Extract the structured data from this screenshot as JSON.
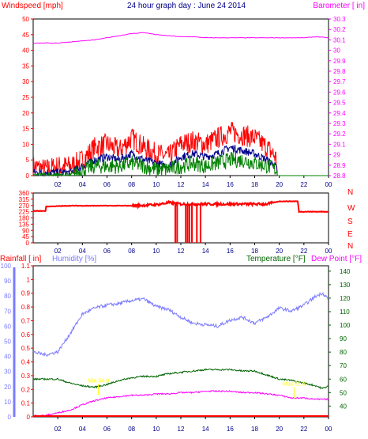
{
  "header": {
    "left_title": "Windspeed [mph]",
    "center_title": "24 hour graph day : June 24 2014",
    "right_title": "Barometer [ in]"
  },
  "colors": {
    "background": "#ffffff",
    "plot_bg": "#ffffff",
    "wind_gust": "#ff0000",
    "wind_avg": "#00008b",
    "wind_speed": "#008000",
    "barometer": "#ff00ff",
    "direction": "#ff0000",
    "humidity": "#7b7bff",
    "temperature": "#006400",
    "dewpoint": "#ff00ff",
    "rain": "#ff0000",
    "time_labels": "#00008b",
    "annotation": "#ffff00"
  },
  "chart_data": [
    {
      "id": "wind",
      "type": "line",
      "xlabel": "",
      "x_ticks": [
        "02",
        "04",
        "06",
        "08",
        "10",
        "12",
        "14",
        "16",
        "18",
        "20",
        "22",
        "00"
      ],
      "left_axis": {
        "label": "Windspeed [mph]",
        "min": 0,
        "max": 50,
        "ticks": [
          0,
          5,
          10,
          15,
          20,
          25,
          30,
          35,
          40,
          45,
          50
        ]
      },
      "right_axis": {
        "label": "Barometer [ in]",
        "min": 28.8,
        "max": 30.3,
        "ticks": [
          28.8,
          28.9,
          29.0,
          29.1,
          29.2,
          29.3,
          29.4,
          29.5,
          29.6,
          29.7,
          29.8,
          29.9,
          30.0,
          30.1,
          30.2,
          30.3
        ],
        "tick_labels": [
          "28.8",
          "28.9",
          "29",
          "29.1",
          "29.2",
          "29.3",
          "29.4",
          "29.5",
          "29.6",
          "29.7",
          "29.8",
          "29.9",
          "30",
          "30.1",
          "30.2",
          "30.3"
        ]
      },
      "hours": [
        0,
        1,
        2,
        3,
        4,
        5,
        6,
        7,
        8,
        9,
        10,
        11,
        12,
        13,
        14,
        15,
        16,
        17,
        18,
        19,
        19.7,
        20,
        21,
        22,
        23,
        24
      ],
      "series": [
        {
          "values_gust": [
            3,
            2,
            3,
            3,
            5,
            9,
            10,
            8,
            12,
            9,
            7,
            6,
            10,
            11,
            10,
            12,
            14,
            13,
            12,
            9,
            6,
            0,
            0,
            0,
            0,
            0
          ]
        },
        {
          "values_avg": [
            1,
            1,
            1,
            1,
            3,
            5,
            6,
            5,
            7,
            5,
            4,
            3,
            6,
            7,
            6,
            7,
            9,
            8,
            7,
            5,
            3,
            0,
            0,
            0,
            0,
            0
          ]
        },
        {
          "values_speed": [
            0,
            0,
            0,
            0,
            2,
            3,
            3,
            3,
            4,
            3,
            2,
            2,
            3,
            4,
            3,
            4,
            5,
            5,
            4,
            3,
            2,
            0,
            0,
            0,
            0,
            0
          ]
        },
        {
          "values_baro": [
            30.07,
            30.07,
            30.07,
            30.08,
            30.09,
            30.1,
            30.12,
            30.14,
            30.16,
            30.17,
            30.15,
            30.14,
            30.13,
            30.13,
            30.12,
            30.12,
            30.12,
            30.12,
            30.12,
            30.12,
            30.12,
            30.12,
            30.12,
            30.12,
            30.13,
            30.12
          ]
        }
      ]
    },
    {
      "id": "direction",
      "type": "line",
      "xlabel": "",
      "x_ticks": [
        "02",
        "04",
        "06",
        "08",
        "10",
        "12",
        "14",
        "16",
        "18",
        "20",
        "22",
        "00"
      ],
      "left_axis": {
        "min": 0,
        "max": 360,
        "ticks": [
          0,
          45,
          90,
          135,
          180,
          225,
          270,
          315,
          360
        ]
      },
      "right_axis": {
        "labels": [
          "N",
          "W",
          "S",
          "E",
          "N"
        ]
      },
      "points": [
        [
          0,
          230
        ],
        [
          1,
          230
        ],
        [
          1.05,
          262
        ],
        [
          3,
          268
        ],
        [
          8,
          268
        ],
        [
          10,
          275
        ],
        [
          11,
          290
        ],
        [
          12,
          280
        ],
        [
          19,
          280
        ],
        [
          20,
          300
        ],
        [
          21.5,
          300
        ],
        [
          21.6,
          225
        ],
        [
          24,
          225
        ]
      ],
      "drops": [
        [
          11.55,
          0
        ],
        [
          11.7,
          0
        ],
        [
          12.4,
          0
        ],
        [
          12.55,
          0
        ],
        [
          12.7,
          0
        ],
        [
          12.9,
          0
        ],
        [
          13.3,
          0
        ],
        [
          13.6,
          0
        ]
      ]
    },
    {
      "id": "climate",
      "type": "line",
      "x_ticks": [
        "02",
        "04",
        "06",
        "08",
        "10",
        "12",
        "14",
        "16",
        "18",
        "20",
        "22",
        "00"
      ],
      "legend": [
        "Rainfall [ in]",
        "Humidity [%]",
        "Temperature [°F]",
        "Dew Point [°F]"
      ],
      "humidity_axis": {
        "min": 0,
        "max": 100,
        "ticks": [
          0,
          10,
          20,
          30,
          40,
          50,
          60,
          70,
          80,
          90,
          100
        ]
      },
      "rain_axis": {
        "min": 0,
        "max": 1.1,
        "ticks": [
          0,
          0.1,
          0.2,
          0.3,
          0.4,
          0.5,
          0.6,
          0.7,
          0.8,
          0.9,
          1.0,
          1.1
        ],
        "tick_labels": [
          "0",
          "0.1",
          "0.2",
          "0.3",
          "0.4",
          "0.5",
          "0.6",
          "0.7",
          "0.8",
          "0.9",
          "1",
          "1.1"
        ]
      },
      "temp_axis": {
        "min": 32,
        "max": 144,
        "ticks": [
          40,
          50,
          60,
          70,
          80,
          90,
          100,
          110,
          120,
          130,
          140
        ]
      },
      "hours": [
        0,
        1,
        2,
        3,
        4,
        5,
        6,
        7,
        8,
        9,
        10,
        11,
        12,
        13,
        14,
        15,
        16,
        17,
        18,
        19,
        20,
        21,
        22,
        23,
        23.5,
        24
      ],
      "humidity": [
        43,
        41,
        43,
        55,
        68,
        72,
        74,
        75,
        77,
        78,
        73,
        71,
        66,
        62,
        61,
        60,
        64,
        66,
        62,
        66,
        72,
        70,
        74,
        80,
        82,
        78
      ],
      "temperature": [
        60,
        60,
        60,
        57,
        55,
        54,
        56,
        59,
        61,
        62,
        62,
        64,
        65,
        66,
        67,
        67,
        67,
        66,
        66,
        63,
        60,
        59,
        57,
        55,
        53,
        55
      ],
      "dewpoint": [
        33,
        33,
        35,
        37,
        41,
        44,
        46,
        47,
        48,
        48,
        49,
        49,
        50,
        50,
        51,
        51,
        51,
        50,
        50,
        49,
        48,
        46,
        46,
        45,
        45,
        45
      ],
      "rain": [
        0,
        0,
        0,
        0,
        0,
        0,
        0,
        0,
        0,
        0,
        0,
        0,
        0,
        0,
        0,
        0,
        0,
        0,
        0,
        0,
        0,
        0,
        0,
        0,
        0,
        0
      ],
      "annotations": [
        {
          "label": "Min 54.0",
          "hour": 5.3,
          "value": 54
        },
        {
          "label": "Max 51.5",
          "hour": 21.2,
          "value": 51.5
        }
      ]
    }
  ]
}
